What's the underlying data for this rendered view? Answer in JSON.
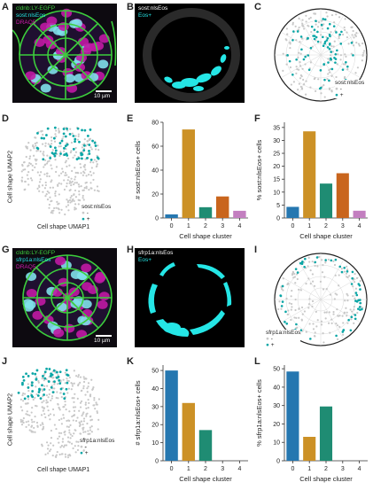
{
  "panel_letters": [
    "A",
    "B",
    "C",
    "D",
    "E",
    "F",
    "G",
    "H",
    "I",
    "J",
    "K",
    "L"
  ],
  "colors": {
    "teal": "#0aa6a6",
    "gray": "#c8c8c8",
    "magenta": "#d21bb0",
    "green": "#3ccd3c",
    "cyan": "#25e6e6",
    "pink": "#c76bbd"
  },
  "cluster_colors": [
    "#2577b0",
    "#cc9126",
    "#1f8c73",
    "#c9651d",
    "#c37fc0"
  ],
  "panelA": {
    "ch1": "cldnb:LY-EGFP",
    "ch2": "sost:nlsEos",
    "ch3": "DRAQ5",
    "scalebar": "10 µm"
  },
  "panelB": {
    "t1": "sost:nlsEos",
    "t2": "Eos+"
  },
  "panelG": {
    "ch1": "cldnb:LY-EGFP",
    "ch2": "sfrp1a:nlsEos",
    "ch3": "DRAQ5",
    "scalebar": "10 µm"
  },
  "panelH": {
    "t1": "sfrp1a:nlsEos",
    "t2": "Eos+"
  },
  "legendC": {
    "title": "sost:nlsEos",
    "neg": "-",
    "pos": "+"
  },
  "legendD": {
    "title": "sost:nlsEos",
    "neg": "-",
    "pos": "+"
  },
  "legendI": {
    "title": "sfrp1a:nlsEos",
    "neg": "-",
    "pos": "+"
  },
  "legendJ": {
    "title": "sfrp1a:nlsEos",
    "neg": "-",
    "pos": "+"
  },
  "umapD": {
    "xlabel": "Cell shape UMAP1",
    "ylabel": "Cell shape UMAP2"
  },
  "umapJ": {
    "xlabel": "Cell shape UMAP1",
    "ylabel": "Cell shape UMAP2"
  },
  "chart_data": [
    {
      "id": "E",
      "type": "bar",
      "categories": [
        "0",
        "1",
        "2",
        "3",
        "4"
      ],
      "values": [
        3,
        74,
        9,
        18,
        6
      ],
      "xlabel": "Cell shape cluster",
      "ylabel": "# sost:nlsEos+ cells",
      "ylim": [
        0,
        80
      ],
      "yticks": [
        0,
        20,
        40,
        60,
        80
      ]
    },
    {
      "id": "F",
      "type": "bar",
      "categories": [
        "0",
        "1",
        "2",
        "3",
        "4"
      ],
      "values": [
        4.3,
        33.5,
        13.3,
        17.3,
        2.8
      ],
      "xlabel": "Cell shape cluster",
      "ylabel": "% sost:nlsEos+ cells",
      "ylim": [
        0,
        37
      ],
      "yticks": [
        0,
        5,
        10,
        15,
        20,
        25,
        30,
        35
      ]
    },
    {
      "id": "K",
      "type": "bar",
      "categories": [
        "0",
        "1",
        "2",
        "3",
        "4"
      ],
      "values": [
        50,
        32,
        17,
        0,
        0
      ],
      "xlabel": "Cell shape cluster",
      "ylabel": "# sfrp1a:nlsEos+ cells",
      "ylim": [
        0,
        53
      ],
      "yticks": [
        0,
        10,
        20,
        30,
        40,
        50
      ]
    },
    {
      "id": "L",
      "type": "bar",
      "categories": [
        "0",
        "1",
        "2",
        "3",
        "4"
      ],
      "values": [
        48.5,
        13,
        29.5,
        0,
        0
      ],
      "xlabel": "Cell shape cluster",
      "ylabel": "% sfrp1a:nlsEos+ cells",
      "ylim": [
        0,
        52
      ],
      "yticks": [
        0,
        10,
        20,
        30,
        40,
        50
      ]
    }
  ]
}
